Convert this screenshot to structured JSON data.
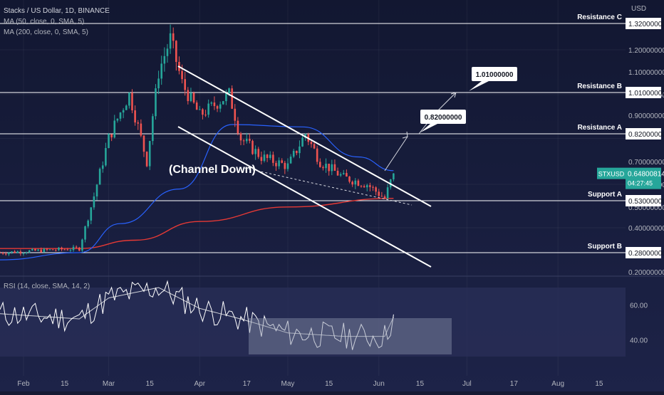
{
  "header": {
    "title": "Stacks / US Dollar, 1D, BINANCE",
    "ma50": "MA (50, close, 0, SMA, 5)",
    "ma200": "MA (200, close, 0, SMA, 5)",
    "rsi": "RSI (14, close, SMA, 14, 2)"
  },
  "currency": "USD",
  "price_axis": {
    "ticks": [
      "1.20000000",
      "1.10000000",
      "1.00000000",
      "0.90000000",
      "0.70000000",
      "0.60000000",
      "0.50000000",
      "0.40000000",
      "0.20000000"
    ]
  },
  "levels": [
    {
      "name": "Resistance C",
      "value": "1.32000000"
    },
    {
      "name": "Resistance B",
      "value": "1.01000000"
    },
    {
      "name": "Resistance A",
      "value": "0.82000000"
    },
    {
      "name": "Support A",
      "value": "0.53000000"
    },
    {
      "name": "Support B",
      "value": "0.28000000"
    }
  ],
  "current_price": {
    "symbol": "STXUSD",
    "price": "0.64800814",
    "countdown": "04:27:45"
  },
  "annotations": {
    "channel": "(Channel Down)",
    "target1": "0.82000000",
    "target2": "1.01000000"
  },
  "rsi_axis": {
    "ticks": [
      "60.00",
      "40.00"
    ]
  },
  "time_axis": {
    "ticks": [
      "Feb",
      "15",
      "Mar",
      "15",
      "Apr",
      "17",
      "May",
      "15",
      "Jun",
      "15",
      "Jul",
      "17",
      "Aug",
      "15"
    ]
  },
  "colors": {
    "background": "#161a33",
    "up": "#26a69a",
    "down": "#ef5350",
    "ma50": "#2962ff",
    "ma200": "#e53935",
    "text": "#d1d4dc"
  },
  "chart_data": {
    "type": "candlestick",
    "title": "Stacks / US Dollar, 1D, BINANCE",
    "y_unit": "USD",
    "x_range": [
      "2024-01-24",
      "2024-08-24"
    ],
    "y_range": [
      0.2,
      1.36
    ],
    "series": [
      {
        "name": "MA (50, close, 0, SMA, 5)",
        "x": [
          "2024-01-24",
          "2024-02-20",
          "2024-03-05",
          "2024-03-25",
          "2024-04-12",
          "2024-05-06",
          "2024-05-25",
          "2024-06-06"
        ],
        "values": [
          0.25,
          0.28,
          0.42,
          0.58,
          0.86,
          0.85,
          0.72,
          0.66
        ]
      },
      {
        "name": "MA (200, close, 0, SMA, 5)",
        "x": [
          "2024-01-24",
          "2024-02-20",
          "2024-03-10",
          "2024-04-01",
          "2024-05-01",
          "2024-06-06"
        ],
        "values": [
          0.3,
          0.3,
          0.34,
          0.43,
          0.5,
          0.54
        ]
      }
    ],
    "price_path": {
      "x": [
        "2024-01-24",
        "2024-02-20",
        "2024-03-01",
        "2024-03-08",
        "2024-03-14",
        "2024-03-18",
        "2024-03-22",
        "2024-03-26",
        "2024-04-01",
        "2024-04-11",
        "2024-04-15",
        "2024-04-22",
        "2024-05-01",
        "2024-05-07",
        "2024-05-12",
        "2024-05-20",
        "2024-05-28",
        "2024-06-03",
        "2024-06-06"
      ],
      "close": [
        0.28,
        0.3,
        0.8,
        1.0,
        0.7,
        1.1,
        1.25,
        1.05,
        0.9,
        1.0,
        0.8,
        0.72,
        0.68,
        0.82,
        0.7,
        0.63,
        0.6,
        0.54,
        0.648
      ]
    },
    "levels": [
      {
        "name": "Resistance C",
        "value": 1.32
      },
      {
        "name": "Resistance B",
        "value": 1.01
      },
      {
        "name": "Resistance A",
        "value": 0.82
      },
      {
        "name": "Support A",
        "value": 0.53
      },
      {
        "name": "Support B",
        "value": 0.28
      }
    ],
    "projection": {
      "x": [
        "2024-06-06",
        "2024-06-24",
        "2024-07-20"
      ],
      "values": [
        0.648,
        0.82,
        1.01
      ]
    },
    "rsi": {
      "x": [
        "2024-01-24",
        "2024-02-20",
        "2024-03-01",
        "2024-03-18",
        "2024-04-01",
        "2024-04-15",
        "2024-05-01",
        "2024-05-20",
        "2024-06-03",
        "2024-06-06"
      ],
      "values": [
        55,
        52,
        64,
        70,
        58,
        52,
        44,
        42,
        42,
        53
      ],
      "range_box": [
        38,
        53
      ]
    },
    "grid": true
  }
}
